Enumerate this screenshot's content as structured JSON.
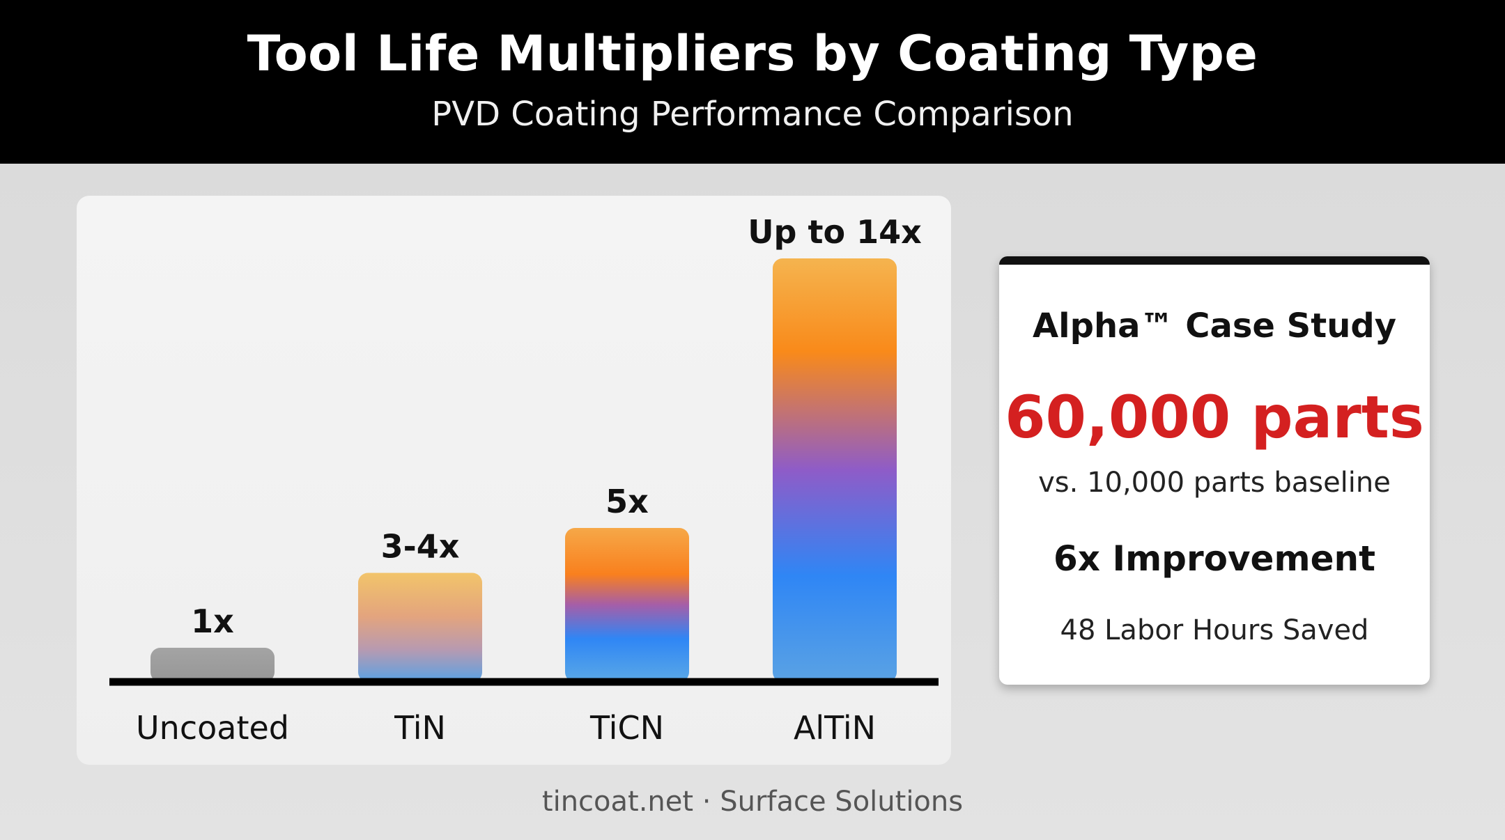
{
  "header": {
    "title": "Tool Life Multipliers by Coating Type",
    "subtitle": "PVD Coating Performance Comparison"
  },
  "chart_data": {
    "type": "bar",
    "title": "Tool Life Multipliers by Coating Type",
    "subtitle": "PVD Coating Performance Comparison",
    "categories": [
      "Uncoated",
      "TiN",
      "TiCN",
      "AlTiN"
    ],
    "values": [
      1,
      3.5,
      5,
      14
    ],
    "value_labels": [
      "1x",
      "3-4x",
      "5x",
      "Up to 14x"
    ],
    "xlabel": "",
    "ylabel": "",
    "ylim": [
      0,
      14
    ],
    "grid": false,
    "colors": {
      "uncoated": "#9e9e9e",
      "gradient_top": "#f4b455",
      "gradient_mid_orange": "#f98a1a",
      "gradient_mid_purple": "#8e5cc8",
      "gradient_bottom_blue": "#2f86f5",
      "gradient_base": "#5aa2e4"
    }
  },
  "case_study": {
    "title": "Alpha™ Case Study",
    "headline": "60,000 parts",
    "baseline": "vs. 10,000 parts baseline",
    "improvement": "6x Improvement",
    "hours_saved": "48 Labor Hours Saved",
    "headline_color": "#d42020"
  },
  "footer": {
    "text": "tincoat.net · Surface Solutions"
  }
}
